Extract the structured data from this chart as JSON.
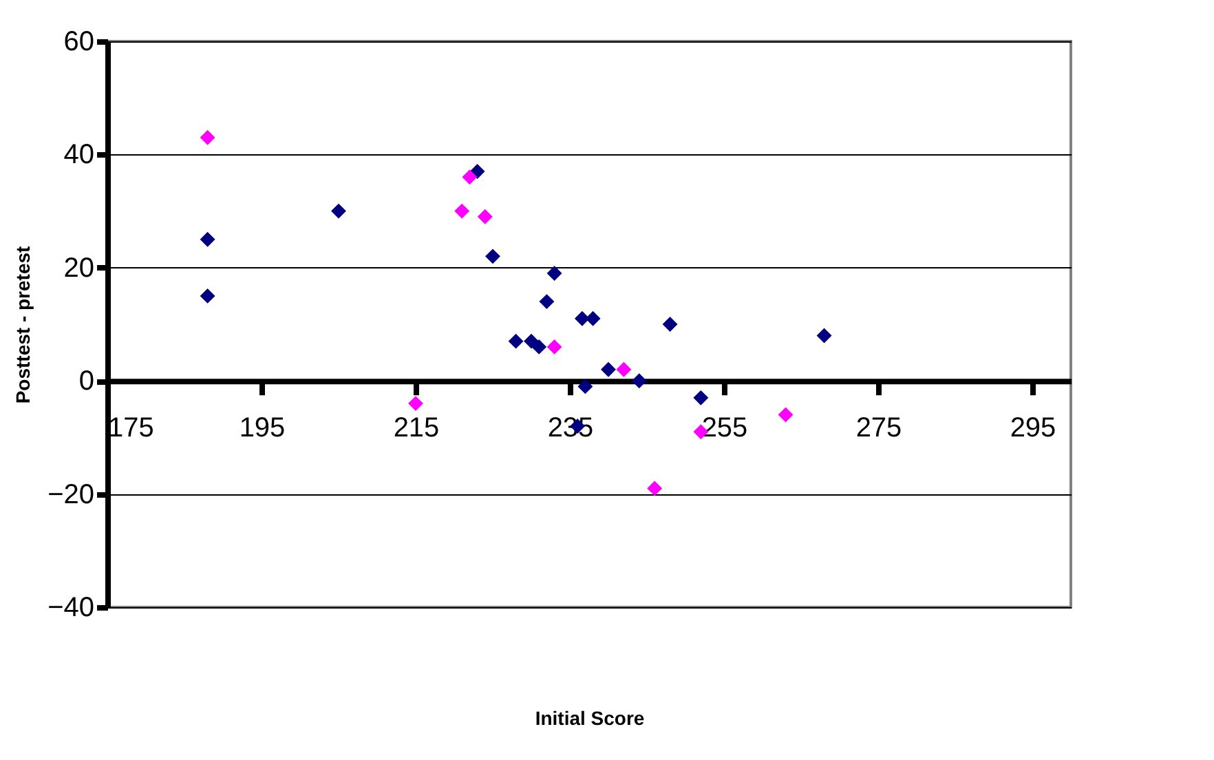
{
  "chart_data": {
    "type": "scatter",
    "xlabel": "Initial Score",
    "ylabel": "Posttest - pretest",
    "xlim": [
      175,
      300
    ],
    "xticks": [
      175,
      195,
      215,
      235,
      255,
      275,
      295
    ],
    "ylim": [
      -40,
      60
    ],
    "yticks": [
      -40,
      -20,
      0,
      20,
      40,
      60
    ],
    "grid": "y",
    "marker": "diamond",
    "legend": false,
    "series": [
      {
        "color": "#000080",
        "x": [
          188,
          188,
          205,
          223,
          225,
          233,
          232,
          228,
          230,
          231,
          236.6,
          238,
          248,
          268,
          240,
          237,
          244,
          252,
          236
        ],
        "values": [
          25,
          15,
          30,
          37,
          22,
          19,
          14,
          7,
          7,
          6,
          11,
          11,
          10,
          8,
          2,
          -1,
          0,
          -3,
          -8
        ]
      },
      {
        "color": "#ff00ff",
        "x": [
          188,
          222,
          221,
          224,
          215,
          233,
          242,
          246,
          252,
          263
        ],
        "values": [
          43,
          36,
          30,
          29,
          -4,
          6,
          2,
          -19,
          -9,
          -6
        ]
      }
    ]
  }
}
